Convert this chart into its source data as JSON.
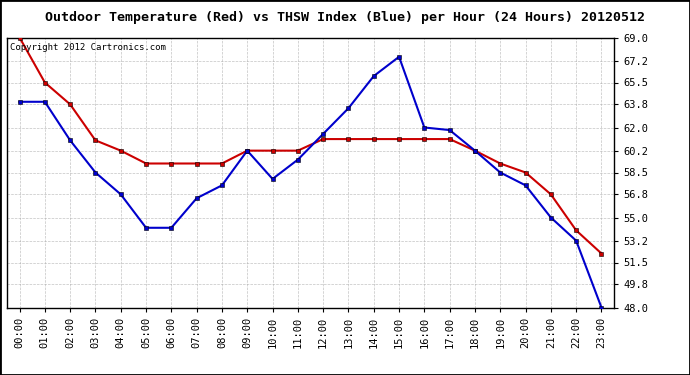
{
  "title": "Outdoor Temperature (Red) vs THSW Index (Blue) per Hour (24 Hours) 20120512",
  "copyright": "Copyright 2012 Cartronics.com",
  "hours": [
    "00:00",
    "01:00",
    "02:00",
    "03:00",
    "04:00",
    "05:00",
    "06:00",
    "07:00",
    "08:00",
    "09:00",
    "10:00",
    "11:00",
    "12:00",
    "13:00",
    "14:00",
    "15:00",
    "16:00",
    "17:00",
    "18:00",
    "19:00",
    "20:00",
    "21:00",
    "22:00",
    "23:00"
  ],
  "red_temp": [
    69.0,
    65.5,
    63.8,
    61.0,
    60.2,
    59.2,
    59.2,
    59.2,
    59.2,
    60.2,
    60.2,
    60.2,
    61.1,
    61.1,
    61.1,
    61.1,
    61.1,
    61.1,
    60.2,
    59.2,
    58.5,
    56.8,
    54.0,
    52.2
  ],
  "blue_thsw": [
    64.0,
    64.0,
    61.0,
    58.5,
    56.8,
    54.2,
    54.2,
    56.5,
    57.5,
    60.2,
    58.0,
    59.5,
    61.5,
    63.5,
    66.0,
    67.5,
    62.0,
    61.8,
    60.2,
    58.5,
    57.5,
    55.0,
    53.2,
    48.0
  ],
  "ylim_min": 48.0,
  "ylim_max": 69.0,
  "yticks": [
    48.0,
    49.8,
    51.5,
    53.2,
    55.0,
    56.8,
    58.5,
    60.2,
    62.0,
    63.8,
    65.5,
    67.2,
    69.0
  ],
  "red_color": "#cc0000",
  "blue_color": "#0000cc",
  "background_color": "#ffffff",
  "grid_color": "#aaaaaa",
  "marker": "s",
  "marker_size": 3,
  "line_width": 1.5,
  "title_fontsize": 9.5,
  "copyright_fontsize": 6.5,
  "tick_fontsize": 7.5
}
